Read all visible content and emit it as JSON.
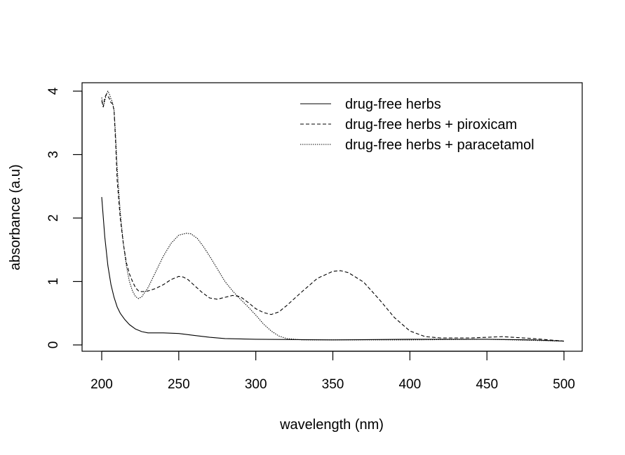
{
  "chart_data": {
    "type": "line",
    "title": "",
    "xlabel": "wavelength (nm)",
    "ylabel": "absorbance (a.u)",
    "xlim": [
      200,
      500
    ],
    "ylim": [
      0,
      4
    ],
    "xticks": [
      200,
      250,
      300,
      350,
      400,
      450,
      500
    ],
    "yticks": [
      0,
      1,
      2,
      3,
      4
    ],
    "grid": false,
    "legend_position": "top-right",
    "series": [
      {
        "name": "drug-free herbs",
        "line_style": "solid",
        "color": "#000000",
        "x": [
          200,
          202,
          204,
          206,
          208,
          210,
          212,
          215,
          218,
          222,
          226,
          230,
          240,
          250,
          260,
          270,
          280,
          300,
          350,
          400,
          450,
          480,
          500
        ],
        "y": [
          2.33,
          1.7,
          1.25,
          0.95,
          0.75,
          0.6,
          0.5,
          0.4,
          0.32,
          0.25,
          0.21,
          0.19,
          0.19,
          0.18,
          0.15,
          0.12,
          0.1,
          0.09,
          0.08,
          0.09,
          0.09,
          0.08,
          0.06
        ]
      },
      {
        "name": "drug-free herbs + piroxicam",
        "line_style": "dashed",
        "color": "#000000",
        "x": [
          200,
          201,
          202,
          203,
          204,
          205,
          206,
          207,
          208,
          209,
          210,
          212,
          214,
          216,
          218,
          220,
          222,
          224,
          226,
          230,
          235,
          240,
          245,
          250,
          253,
          256,
          260,
          265,
          270,
          275,
          280,
          285,
          290,
          295,
          300,
          305,
          310,
          315,
          320,
          330,
          340,
          350,
          355,
          360,
          370,
          380,
          390,
          400,
          410,
          420,
          440,
          460,
          480,
          500
        ],
        "y": [
          3.85,
          3.75,
          3.9,
          3.95,
          3.92,
          3.88,
          3.82,
          3.8,
          3.7,
          3.2,
          2.6,
          2.0,
          1.6,
          1.3,
          1.12,
          1.0,
          0.9,
          0.85,
          0.84,
          0.85,
          0.89,
          0.95,
          1.03,
          1.08,
          1.07,
          1.03,
          0.94,
          0.83,
          0.74,
          0.72,
          0.75,
          0.78,
          0.76,
          0.67,
          0.57,
          0.51,
          0.48,
          0.52,
          0.62,
          0.84,
          1.05,
          1.16,
          1.17,
          1.14,
          0.99,
          0.72,
          0.43,
          0.22,
          0.13,
          0.11,
          0.11,
          0.13,
          0.1,
          0.06
        ]
      },
      {
        "name": "drug-free herbs + paracetamol",
        "line_style": "dotted",
        "color": "#000000",
        "x": [
          200,
          201,
          202,
          203,
          204,
          205,
          206,
          207,
          208,
          209,
          210,
          212,
          214,
          216,
          218,
          220,
          222,
          224,
          226,
          230,
          235,
          240,
          245,
          250,
          255,
          258,
          262,
          266,
          270,
          275,
          280,
          285,
          290,
          295,
          300,
          305,
          310,
          315,
          320,
          325,
          330,
          340,
          350,
          400,
          450,
          500
        ],
        "y": [
          3.9,
          3.75,
          3.85,
          3.95,
          4.0,
          3.95,
          3.88,
          3.82,
          3.7,
          3.3,
          2.8,
          2.1,
          1.6,
          1.25,
          1.0,
          0.85,
          0.76,
          0.73,
          0.76,
          0.9,
          1.15,
          1.4,
          1.6,
          1.73,
          1.76,
          1.75,
          1.68,
          1.55,
          1.4,
          1.2,
          1.0,
          0.85,
          0.72,
          0.6,
          0.47,
          0.33,
          0.22,
          0.14,
          0.1,
          0.09,
          0.08,
          0.08,
          0.08,
          0.08,
          0.09,
          0.06
        ]
      }
    ]
  }
}
